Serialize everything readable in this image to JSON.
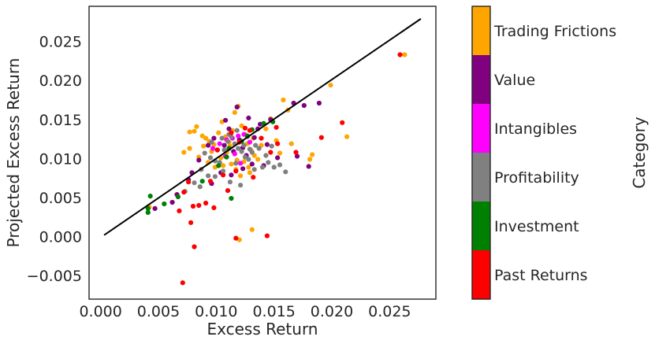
{
  "chart_data": {
    "type": "scatter",
    "title": "",
    "xlabel": "Excess Return",
    "ylabel": "Projected Excess Return",
    "xlim": [
      -0.001,
      0.029
    ],
    "ylim": [
      -0.008,
      0.0295
    ],
    "xticks": [
      0.0,
      0.005,
      0.01,
      0.015,
      0.02,
      0.025
    ],
    "yticks": [
      -0.005,
      0.0,
      0.005,
      0.01,
      0.015,
      0.02,
      0.025
    ],
    "xtick_labels": [
      "0.000",
      "0.005",
      "0.010",
      "0.015",
      "0.020",
      "0.025"
    ],
    "ytick_labels": [
      "−0.005",
      "0.000",
      "0.005",
      "0.010",
      "0.015",
      "0.020",
      "0.025"
    ],
    "grid": false,
    "reference_line": {
      "x": [
        0.0003,
        0.0277
      ],
      "y": [
        0.0002,
        0.0279
      ],
      "color": "#000000"
    },
    "colorbar": {
      "label": "Category",
      "categories": [
        {
          "name": "Trading Frictions",
          "color": "#FFA500"
        },
        {
          "name": "Value",
          "color": "#800080"
        },
        {
          "name": "Intangibles",
          "color": "#FF00FF"
        },
        {
          "name": "Profitability",
          "color": "#808080"
        },
        {
          "name": "Investment",
          "color": "#008000"
        },
        {
          "name": "Past Returns",
          "color": "#FF0000"
        }
      ]
    },
    "series": [
      {
        "name": "Trading Frictions",
        "color": "#FFA500",
        "points": [
          [
            0.0263,
            0.0233
          ],
          [
            0.0199,
            0.0194
          ],
          [
            0.0213,
            0.0128
          ],
          [
            0.0183,
            0.0105
          ],
          [
            0.0181,
            0.0099
          ],
          [
            0.0165,
            0.0119
          ],
          [
            0.0162,
            0.0162
          ],
          [
            0.0158,
            0.0175
          ],
          [
            0.0131,
            0.0009
          ],
          [
            0.012,
            -0.0004
          ],
          [
            0.0077,
            0.0134
          ],
          [
            0.0081,
            0.0135
          ],
          [
            0.0083,
            0.0141
          ],
          [
            0.0088,
            0.0129
          ],
          [
            0.0091,
            0.0126
          ],
          [
            0.0094,
            0.0122
          ],
          [
            0.0098,
            0.0118
          ],
          [
            0.0102,
            0.0133
          ],
          [
            0.0105,
            0.0147
          ],
          [
            0.0108,
            0.0128
          ],
          [
            0.0111,
            0.0121
          ],
          [
            0.0114,
            0.0136
          ],
          [
            0.0116,
            0.0159
          ],
          [
            0.0119,
            0.0167
          ],
          [
            0.0122,
            0.0142
          ],
          [
            0.0125,
            0.0131
          ],
          [
            0.0127,
            0.0119
          ],
          [
            0.013,
            0.0111
          ],
          [
            0.0133,
            0.0104
          ],
          [
            0.0136,
            0.0099
          ],
          [
            0.0139,
            0.0117
          ],
          [
            0.0143,
            0.0138
          ],
          [
            0.0147,
            0.0151
          ],
          [
            0.0152,
            0.0123
          ],
          [
            0.0155,
            0.0107
          ],
          [
            0.0072,
            0.0108
          ],
          [
            0.0077,
            0.0113
          ],
          [
            0.0085,
            0.0102
          ],
          [
            0.0093,
            0.0095
          ],
          [
            0.0099,
            0.0089
          ],
          [
            0.0104,
            0.0101
          ],
          [
            0.0109,
            0.0108
          ],
          [
            0.0113,
            0.0093
          ],
          [
            0.0117,
            0.0086
          ],
          [
            0.0121,
            0.0078
          ],
          [
            0.0124,
            0.0096
          ],
          [
            0.0128,
            0.0089
          ],
          [
            0.0132,
            0.0126
          ],
          [
            0.0112,
            0.0116
          ],
          [
            0.0106,
            0.0091
          ],
          [
            0.0096,
            0.0109
          ],
          [
            0.0089,
            0.0116
          ],
          [
            0.0042,
            0.0038
          ],
          [
            0.0118,
            0.0098
          ],
          [
            0.0129,
            0.0082
          ]
        ]
      },
      {
        "name": "Value",
        "color": "#800080",
        "points": [
          [
            0.0167,
            0.0171
          ],
          [
            0.0176,
            0.0168
          ],
          [
            0.0189,
            0.0171
          ],
          [
            0.018,
            0.009
          ],
          [
            0.017,
            0.0103
          ],
          [
            0.0147,
            0.015
          ],
          [
            0.0138,
            0.0144
          ],
          [
            0.0128,
            0.0152
          ],
          [
            0.0118,
            0.0166
          ],
          [
            0.0108,
            0.0149
          ],
          [
            0.0098,
            0.0126
          ],
          [
            0.0093,
            0.0117
          ],
          [
            0.0085,
            0.0098
          ],
          [
            0.0079,
            0.0082
          ],
          [
            0.0076,
            0.0073
          ],
          [
            0.0066,
            0.0054
          ],
          [
            0.0062,
            0.0044
          ],
          [
            0.0047,
            0.0036
          ],
          [
            0.0104,
            0.0082
          ],
          [
            0.0113,
            0.0079
          ],
          [
            0.0123,
            0.0087
          ],
          [
            0.0131,
            0.0093
          ],
          [
            0.0141,
            0.0091
          ],
          [
            0.0153,
            0.0101
          ],
          [
            0.0115,
            0.0109
          ],
          [
            0.0107,
            0.0117
          ],
          [
            0.012,
            0.0124
          ],
          [
            0.0133,
            0.0127
          ],
          [
            0.0126,
            0.0104
          ],
          [
            0.0096,
            0.0068
          ],
          [
            0.0136,
            0.0138
          ],
          [
            0.0144,
            0.0118
          ],
          [
            0.0111,
            0.0138
          ],
          [
            0.0123,
            0.0114
          ],
          [
            0.0101,
            0.0111
          ]
        ]
      },
      {
        "name": "Intangibles",
        "color": "#FF00FF",
        "points": [
          [
            0.0097,
            0.0113
          ],
          [
            0.0103,
            0.0119
          ],
          [
            0.0109,
            0.0124
          ],
          [
            0.0114,
            0.0126
          ],
          [
            0.0119,
            0.0129
          ],
          [
            0.0124,
            0.0131
          ],
          [
            0.0116,
            0.0106
          ],
          [
            0.0108,
            0.0103
          ],
          [
            0.0121,
            0.0094
          ],
          [
            0.0129,
            0.0121
          ]
        ]
      },
      {
        "name": "Profitability",
        "color": "#808080",
        "points": [
          [
            0.0073,
            0.0058
          ],
          [
            0.0081,
            0.0069
          ],
          [
            0.0086,
            0.0064
          ],
          [
            0.009,
            0.0107
          ],
          [
            0.0095,
            0.0101
          ],
          [
            0.0099,
            0.0097
          ],
          [
            0.0103,
            0.0095
          ],
          [
            0.0107,
            0.0111
          ],
          [
            0.011,
            0.0122
          ],
          [
            0.0113,
            0.0128
          ],
          [
            0.0116,
            0.0119
          ],
          [
            0.0119,
            0.0113
          ],
          [
            0.0122,
            0.0109
          ],
          [
            0.0125,
            0.0102
          ],
          [
            0.0128,
            0.0099
          ],
          [
            0.0131,
            0.0108
          ],
          [
            0.0134,
            0.0117
          ],
          [
            0.0137,
            0.0113
          ],
          [
            0.014,
            0.0089
          ],
          [
            0.0145,
            0.0095
          ],
          [
            0.015,
            0.0089
          ],
          [
            0.0155,
            0.0092
          ],
          [
            0.016,
            0.0083
          ],
          [
            0.0096,
            0.0121
          ],
          [
            0.0105,
            0.0126
          ],
          [
            0.0111,
            0.0131
          ],
          [
            0.0118,
            0.0136
          ],
          [
            0.0127,
            0.0128
          ],
          [
            0.0106,
            0.0084
          ],
          [
            0.0099,
            0.0077
          ],
          [
            0.0112,
            0.007
          ],
          [
            0.0121,
            0.0066
          ],
          [
            0.0133,
            0.0086
          ],
          [
            0.0143,
            0.0104
          ],
          [
            0.0148,
            0.0116
          ],
          [
            0.0087,
            0.0086
          ],
          [
            0.0093,
            0.0078
          ],
          [
            0.0117,
            0.0094
          ],
          [
            0.0124,
            0.0117
          ],
          [
            0.0129,
            0.0112
          ]
        ]
      },
      {
        "name": "Investment",
        "color": "#008000",
        "points": [
          [
            0.0043,
            0.0052
          ],
          [
            0.0041,
            0.0036
          ],
          [
            0.0041,
            0.0031
          ],
          [
            0.0055,
            0.0042
          ],
          [
            0.0067,
            0.0051
          ],
          [
            0.0088,
            0.0071
          ],
          [
            0.0113,
            0.0049
          ],
          [
            0.0122,
            0.0122
          ],
          [
            0.0131,
            0.0137
          ],
          [
            0.0141,
            0.0145
          ],
          [
            0.0149,
            0.0147
          ],
          [
            0.0111,
            0.0113
          ],
          [
            0.0102,
            0.0091
          ],
          [
            0.0127,
            0.0129
          ],
          [
            0.0109,
            0.0102
          ]
        ]
      },
      {
        "name": "Past Returns",
        "color": "#FF0000",
        "points": [
          [
            0.0259,
            0.0233
          ],
          [
            0.0209,
            0.0146
          ],
          [
            0.0191,
            0.0127
          ],
          [
            0.0169,
            0.0108
          ],
          [
            0.0152,
            0.014
          ],
          [
            0.0153,
            0.0119
          ],
          [
            0.0147,
            0.0108
          ],
          [
            0.0129,
            0.0136
          ],
          [
            0.012,
            0.0121
          ],
          [
            0.0117,
            0.0084
          ],
          [
            0.0106,
            0.0079
          ],
          [
            0.0098,
            0.0037
          ],
          [
            0.0091,
            0.0043
          ],
          [
            0.0085,
            0.004
          ],
          [
            0.008,
            0.0039
          ],
          [
            0.0076,
            0.007
          ],
          [
            0.0072,
            0.0057
          ],
          [
            0.0068,
            0.0033
          ],
          [
            0.0078,
            0.0018
          ],
          [
            0.0081,
            -0.0013
          ],
          [
            0.0071,
            -0.0059
          ],
          [
            0.0117,
            -0.0002
          ],
          [
            0.0144,
            0.0001
          ],
          [
            0.0132,
            0.0076
          ],
          [
            0.0139,
            0.0126
          ],
          [
            0.0125,
            0.0139
          ],
          [
            0.0113,
            0.0133
          ],
          [
            0.0101,
            0.0111
          ],
          [
            0.0095,
            0.0071
          ],
          [
            0.011,
            0.0059
          ]
        ]
      }
    ]
  }
}
